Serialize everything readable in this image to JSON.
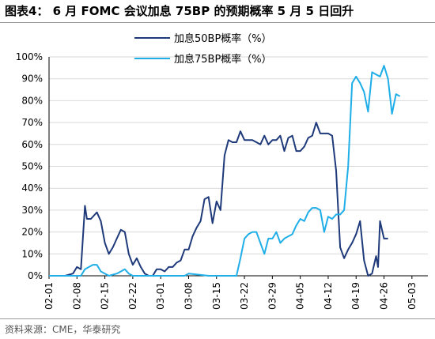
{
  "title": "图表4： 6 月 FOMC 会议加息 75BP 的预期概率 5 月 5 日回升",
  "source": "资料来源：CME，华泰研究",
  "colors": {
    "dark": "#1f3a7a",
    "light": "#1faee8",
    "grid": "#d9d9d9",
    "axis": "#000000"
  },
  "chart_data": {
    "type": "line",
    "ylim": [
      0,
      100
    ],
    "y_ticks": [
      0,
      10,
      20,
      30,
      40,
      50,
      60,
      70,
      80,
      90,
      100
    ],
    "y_tick_labels": [
      "0%",
      "10%",
      "20%",
      "30%",
      "40%",
      "50%",
      "60%",
      "70%",
      "80%",
      "90%",
      "100%"
    ],
    "x_tick_labels": [
      "02-01",
      "02-08",
      "02-15",
      "02-22",
      "03-01",
      "03-08",
      "03-15",
      "03-22",
      "03-29",
      "04-05",
      "04-12",
      "04-19",
      "04-26",
      "05-03"
    ],
    "x_tick_days": [
      0,
      7,
      14,
      21,
      28,
      35,
      42,
      49,
      56,
      63,
      70,
      77,
      84,
      91
    ],
    "xlim_days": [
      0,
      95
    ],
    "legend_position": "top-center",
    "series": [
      {
        "name": "加息50BP概率（%）",
        "color": "#1f3a7a",
        "points": [
          [
            0,
            0
          ],
          [
            4,
            0
          ],
          [
            6,
            1
          ],
          [
            7,
            4
          ],
          [
            8,
            3
          ],
          [
            9,
            32
          ],
          [
            9.5,
            26
          ],
          [
            10.5,
            26
          ],
          [
            12,
            29
          ],
          [
            13,
            25
          ],
          [
            14,
            15
          ],
          [
            15,
            10
          ],
          [
            16,
            13
          ],
          [
            17,
            17
          ],
          [
            18,
            21
          ],
          [
            19,
            20
          ],
          [
            20,
            10
          ],
          [
            21,
            5
          ],
          [
            22,
            8
          ],
          [
            23,
            4
          ],
          [
            24,
            1
          ],
          [
            25,
            0
          ],
          [
            26,
            0
          ],
          [
            27,
            3
          ],
          [
            28,
            3
          ],
          [
            29,
            2
          ],
          [
            30,
            4
          ],
          [
            31,
            4
          ],
          [
            32,
            6
          ],
          [
            33,
            7
          ],
          [
            34,
            12
          ],
          [
            35,
            12
          ],
          [
            36,
            18
          ],
          [
            37,
            22
          ],
          [
            38,
            25
          ],
          [
            39,
            35
          ],
          [
            40,
            36
          ],
          [
            41,
            24
          ],
          [
            42,
            34
          ],
          [
            43,
            30
          ],
          [
            44,
            55
          ],
          [
            45,
            62
          ],
          [
            46,
            61
          ],
          [
            47,
            61
          ],
          [
            48,
            66
          ],
          [
            49,
            62
          ],
          [
            50,
            62
          ],
          [
            51,
            62
          ],
          [
            52,
            61
          ],
          [
            53,
            60
          ],
          [
            54,
            64
          ],
          [
            55,
            60
          ],
          [
            56,
            62
          ],
          [
            57,
            62
          ],
          [
            58,
            64
          ],
          [
            59,
            57
          ],
          [
            60,
            63
          ],
          [
            61,
            64
          ],
          [
            62,
            57
          ],
          [
            63,
            57
          ],
          [
            64,
            59
          ],
          [
            65,
            63
          ],
          [
            66,
            64
          ],
          [
            67,
            70
          ],
          [
            68,
            65
          ],
          [
            69,
            65
          ],
          [
            70,
            65
          ],
          [
            71,
            64
          ],
          [
            72,
            48
          ],
          [
            73,
            13
          ],
          [
            74,
            8
          ],
          [
            75,
            12
          ],
          [
            76,
            15
          ],
          [
            77,
            19
          ],
          [
            78,
            25
          ],
          [
            79,
            7
          ],
          [
            80,
            0
          ],
          [
            81,
            1
          ],
          [
            82,
            9
          ],
          [
            82.5,
            4
          ],
          [
            83,
            25
          ],
          [
            84,
            17
          ],
          [
            85,
            17
          ]
        ]
      },
      {
        "name": "加息75BP概率（%）",
        "color": "#1faee8",
        "points": [
          [
            0,
            0
          ],
          [
            8,
            0
          ],
          [
            9,
            3
          ],
          [
            10,
            4
          ],
          [
            11,
            5
          ],
          [
            12,
            5
          ],
          [
            13,
            2
          ],
          [
            14,
            1
          ],
          [
            15,
            0
          ],
          [
            17,
            1
          ],
          [
            18,
            2
          ],
          [
            19,
            3
          ],
          [
            20,
            1
          ],
          [
            21,
            0
          ],
          [
            28,
            0
          ],
          [
            34,
            0
          ],
          [
            35,
            1
          ],
          [
            40,
            0
          ],
          [
            47,
            0
          ],
          [
            48,
            8
          ],
          [
            49,
            17
          ],
          [
            50,
            19
          ],
          [
            51,
            20
          ],
          [
            52,
            20
          ],
          [
            53,
            15
          ],
          [
            54,
            10
          ],
          [
            55,
            17
          ],
          [
            56,
            17
          ],
          [
            57,
            20
          ],
          [
            58,
            15
          ],
          [
            59,
            17
          ],
          [
            60,
            18
          ],
          [
            61,
            19
          ],
          [
            62,
            23
          ],
          [
            63,
            26
          ],
          [
            64,
            25
          ],
          [
            65,
            29
          ],
          [
            66,
            31
          ],
          [
            67,
            31
          ],
          [
            68,
            30
          ],
          [
            69,
            20
          ],
          [
            70,
            27
          ],
          [
            71,
            26
          ],
          [
            72,
            28
          ],
          [
            73,
            28
          ],
          [
            74,
            30
          ],
          [
            75,
            50
          ],
          [
            76,
            88
          ],
          [
            77,
            91
          ],
          [
            78,
            88
          ],
          [
            79,
            84
          ],
          [
            80,
            75
          ],
          [
            81,
            93
          ],
          [
            82,
            92
          ],
          [
            83,
            91
          ],
          [
            84,
            96
          ],
          [
            85,
            90
          ],
          [
            86,
            74
          ],
          [
            87,
            83
          ],
          [
            88,
            82
          ]
        ]
      }
    ]
  }
}
